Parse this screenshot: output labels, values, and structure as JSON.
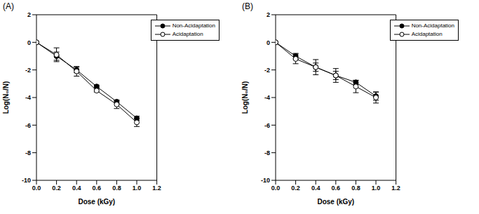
{
  "chart_data": [
    {
      "type": "line",
      "title": "(A)",
      "x_label": "Dose (kGy)",
      "y_label": "Log(N₀/N)",
      "x": [
        0,
        0.2,
        0.4,
        0.6,
        0.8,
        1.0
      ],
      "xlim": [
        0,
        1.2
      ],
      "xticks": [
        {
          "value": 0,
          "label": "0.0"
        },
        0.2,
        0.4,
        0.6,
        0.8,
        {
          "value": 1,
          "label": "1.0"
        },
        1.2
      ],
      "ylim": [
        -10,
        2
      ],
      "yticks": [
        -10,
        -8,
        -6,
        -4,
        -2,
        0,
        2
      ],
      "legend": "upper right",
      "series": [
        {
          "name": "Non-Acidaptation",
          "color": "#000000",
          "marker": "filled_circle",
          "values": [
            0,
            -1.0,
            -2.0,
            -3.2,
            -4.3,
            -5.5
          ],
          "errors": [
            0,
            0.3,
            0.2,
            0.1,
            0.1,
            0.15
          ]
        },
        {
          "name": "Acidaptation",
          "color": "#000000",
          "marker": "open_circle",
          "values": [
            0,
            -0.9,
            -2.1,
            -3.5,
            -4.5,
            -5.8
          ],
          "errors": [
            0,
            0.5,
            0.35,
            0.1,
            0.3,
            0.3
          ]
        }
      ]
    },
    {
      "type": "line",
      "title": "(B)",
      "x_label": "Dose (kGy)",
      "y_label": "Log(N₀/N)",
      "x": [
        0,
        0.2,
        0.4,
        0.6,
        0.8,
        1.0
      ],
      "xlim": [
        0,
        1.2
      ],
      "xticks": [
        {
          "value": 0,
          "label": "0.0"
        },
        0.2,
        0.4,
        0.6,
        0.8,
        {
          "value": 1,
          "label": "1.0"
        },
        1.2
      ],
      "ylim": [
        -10,
        2
      ],
      "yticks": [
        -10,
        -8,
        -6,
        -4,
        -2,
        0,
        2
      ],
      "legend": "upper right",
      "series": [
        {
          "name": "Non-Acidaptation",
          "color": "#000000",
          "marker": "filled_circle",
          "values": [
            0,
            -1.0,
            -1.8,
            -2.4,
            -2.9,
            -3.9
          ],
          "errors": [
            0,
            0.2,
            0.3,
            0.3,
            0.15,
            0.3
          ]
        },
        {
          "name": "Acidaptation",
          "color": "#000000",
          "marker": "open_circle",
          "values": [
            0,
            -1.2,
            -1.8,
            -2.4,
            -3.2,
            -4.0
          ],
          "errors": [
            0,
            0.35,
            0.55,
            0.5,
            0.45,
            0.4
          ]
        }
      ]
    }
  ]
}
